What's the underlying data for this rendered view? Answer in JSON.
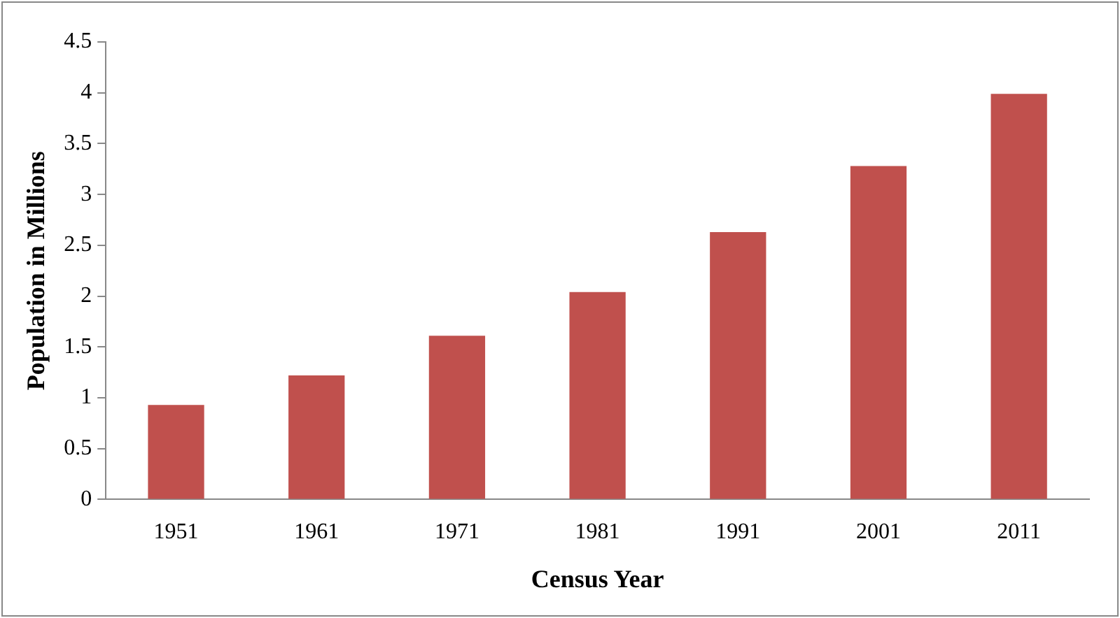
{
  "chart_data": {
    "type": "bar",
    "xlabel": "Census Year",
    "ylabel": "Population in Millions",
    "categories": [
      "1951",
      "1961",
      "1971",
      "1981",
      "1991",
      "2001",
      "2011"
    ],
    "values": [
      0.93,
      1.22,
      1.61,
      2.04,
      2.63,
      3.28,
      3.99
    ],
    "color": "#c0504d",
    "ylim": [
      0,
      4.5
    ],
    "yticks": [
      0,
      0.5,
      1,
      1.5,
      2,
      2.5,
      3,
      3.5,
      4,
      4.5
    ],
    "grid": false,
    "legend": false
  }
}
